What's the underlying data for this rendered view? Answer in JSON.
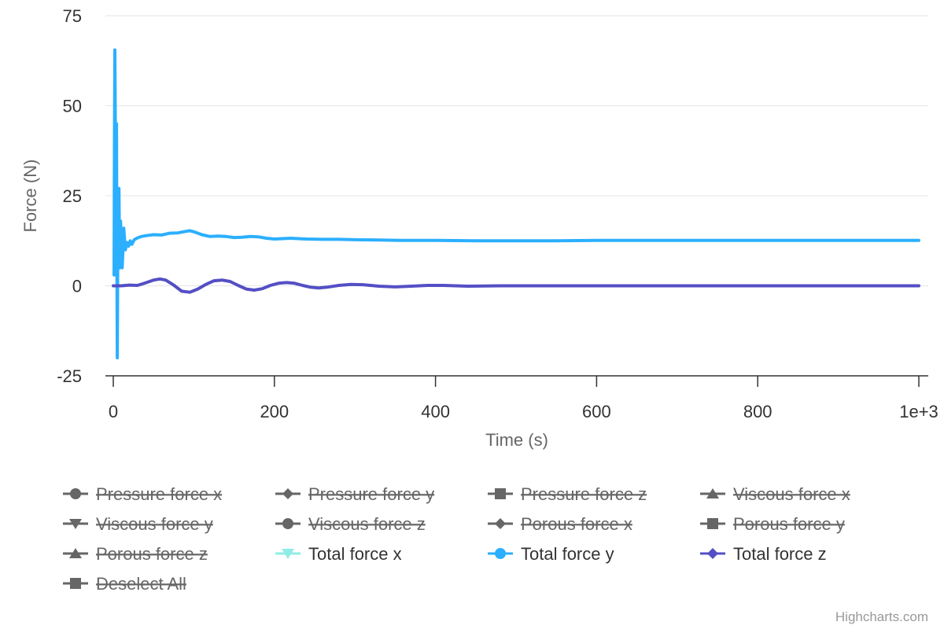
{
  "chart_data": {
    "type": "line",
    "xlabel": "Time (s)",
    "ylabel": "Force (N)",
    "xlim": [
      0,
      1000
    ],
    "ylim": [
      -25,
      75
    ],
    "x_ticks": [
      0,
      200,
      400,
      600,
      800,
      1000
    ],
    "x_tick_labels": [
      "0",
      "200",
      "400",
      "600",
      "800",
      "1e+3"
    ],
    "y_ticks": [
      -25,
      0,
      25,
      50,
      75
    ],
    "y_tick_labels": [
      "-25",
      "0",
      "25",
      "50",
      "75"
    ],
    "grid": "horizontal",
    "legend_position": "bottom",
    "series": [
      {
        "name": "Pressure force x",
        "visible": false,
        "color": "#666666",
        "symbol": "circle",
        "points": []
      },
      {
        "name": "Pressure force y",
        "visible": false,
        "color": "#666666",
        "symbol": "diamond",
        "points": []
      },
      {
        "name": "Pressure force z",
        "visible": false,
        "color": "#666666",
        "symbol": "square",
        "points": []
      },
      {
        "name": "Viscous force x",
        "visible": false,
        "color": "#666666",
        "symbol": "triangle",
        "points": []
      },
      {
        "name": "Viscous force y",
        "visible": false,
        "color": "#666666",
        "symbol": "triangle-down",
        "points": []
      },
      {
        "name": "Viscous force z",
        "visible": false,
        "color": "#666666",
        "symbol": "circle",
        "points": []
      },
      {
        "name": "Porous force x",
        "visible": false,
        "color": "#666666",
        "symbol": "diamond",
        "points": []
      },
      {
        "name": "Porous force y",
        "visible": false,
        "color": "#666666",
        "symbol": "square",
        "points": []
      },
      {
        "name": "Porous force z",
        "visible": false,
        "color": "#666666",
        "symbol": "triangle",
        "points": []
      },
      {
        "name": "Total force x",
        "visible": true,
        "color": "#90ede5",
        "symbol": "triangle-down",
        "points": []
      },
      {
        "name": "Total force y",
        "visible": true,
        "color": "#2caffe",
        "symbol": "circle",
        "points": [
          [
            1,
            3
          ],
          [
            1.5,
            40
          ],
          [
            2,
            65.5
          ],
          [
            2.5,
            45
          ],
          [
            3,
            5
          ],
          [
            3.5,
            20
          ],
          [
            4,
            45
          ],
          [
            4.5,
            8
          ],
          [
            5,
            -20
          ],
          [
            5.5,
            5
          ],
          [
            6,
            22
          ],
          [
            6.5,
            14
          ],
          [
            7,
            27
          ],
          [
            7.5,
            15
          ],
          [
            8,
            5
          ],
          [
            9,
            18
          ],
          [
            10,
            13
          ],
          [
            11,
            5
          ],
          [
            12,
            10
          ],
          [
            13,
            16
          ],
          [
            14,
            13
          ],
          [
            15,
            10
          ],
          [
            17,
            12
          ],
          [
            19,
            11
          ],
          [
            21,
            12.5
          ],
          [
            23,
            11.5
          ],
          [
            26,
            12.8
          ],
          [
            30,
            13.3
          ],
          [
            35,
            13.7
          ],
          [
            40,
            13.9
          ],
          [
            50,
            14.2
          ],
          [
            60,
            14.1
          ],
          [
            70,
            14.6
          ],
          [
            80,
            14.7
          ],
          [
            90,
            15.1
          ],
          [
            95,
            15.3
          ],
          [
            100,
            15.0
          ],
          [
            110,
            14.2
          ],
          [
            120,
            13.7
          ],
          [
            130,
            13.8
          ],
          [
            140,
            13.7
          ],
          [
            150,
            13.4
          ],
          [
            160,
            13.5
          ],
          [
            170,
            13.7
          ],
          [
            180,
            13.6
          ],
          [
            190,
            13.2
          ],
          [
            200,
            13.0
          ],
          [
            220,
            13.2
          ],
          [
            240,
            13.0
          ],
          [
            260,
            12.9
          ],
          [
            280,
            12.9
          ],
          [
            300,
            12.8
          ],
          [
            330,
            12.7
          ],
          [
            360,
            12.6
          ],
          [
            400,
            12.6
          ],
          [
            450,
            12.5
          ],
          [
            500,
            12.5
          ],
          [
            550,
            12.5
          ],
          [
            600,
            12.6
          ],
          [
            700,
            12.6
          ],
          [
            800,
            12.6
          ],
          [
            900,
            12.6
          ],
          [
            1000,
            12.6
          ]
        ]
      },
      {
        "name": "Total force z",
        "visible": true,
        "color": "#544fc5",
        "symbol": "diamond",
        "points": [
          [
            0,
            0.0
          ],
          [
            10,
            0.0
          ],
          [
            20,
            0.2
          ],
          [
            30,
            0.1
          ],
          [
            40,
            0.8
          ],
          [
            50,
            1.6
          ],
          [
            58,
            1.9
          ],
          [
            65,
            1.6
          ],
          [
            75,
            0.2
          ],
          [
            85,
            -1.5
          ],
          [
            95,
            -1.8
          ],
          [
            105,
            -0.9
          ],
          [
            115,
            0.4
          ],
          [
            125,
            1.4
          ],
          [
            135,
            1.6
          ],
          [
            145,
            1.2
          ],
          [
            155,
            0.1
          ],
          [
            165,
            -0.9
          ],
          [
            175,
            -1.2
          ],
          [
            185,
            -0.8
          ],
          [
            195,
            0.1
          ],
          [
            205,
            0.7
          ],
          [
            215,
            0.9
          ],
          [
            225,
            0.7
          ],
          [
            235,
            0.1
          ],
          [
            245,
            -0.4
          ],
          [
            255,
            -0.6
          ],
          [
            265,
            -0.4
          ],
          [
            280,
            0.1
          ],
          [
            295,
            0.4
          ],
          [
            310,
            0.3
          ],
          [
            330,
            -0.1
          ],
          [
            350,
            -0.3
          ],
          [
            370,
            -0.1
          ],
          [
            390,
            0.1
          ],
          [
            410,
            0.1
          ],
          [
            440,
            -0.1
          ],
          [
            480,
            0.0
          ],
          [
            600,
            0.0
          ],
          [
            800,
            0.0
          ],
          [
            1000,
            0.0
          ]
        ]
      },
      {
        "name": "Deselect All",
        "visible": false,
        "color": "#666666",
        "symbol": "square",
        "points": []
      }
    ]
  },
  "credits": "Highcharts.com"
}
